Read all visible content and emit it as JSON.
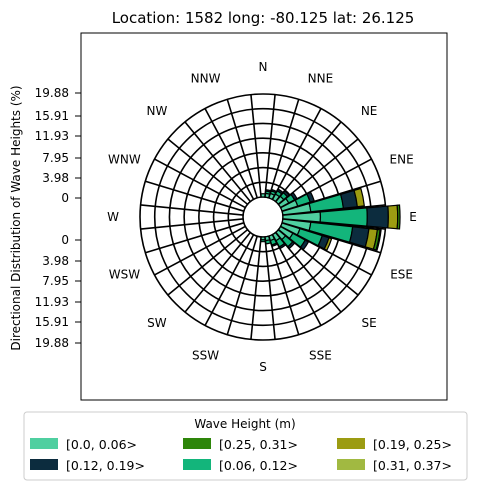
{
  "chart_data": {
    "type": "wind-rose",
    "title": "Location: 1582 long: -80.125 lat: 26.125",
    "ylabel": "Directional Distribution of Wave Heights (%)",
    "radial_ticks_upper": [
      "19.88",
      "15.91",
      "11.93",
      "7.95",
      "3.98",
      "0"
    ],
    "radial_ticks_lower": [
      "0",
      "3.98",
      "7.95",
      "11.93",
      "15.91",
      "19.88"
    ],
    "rmax": 22.0,
    "directions": [
      "N",
      "NNE",
      "NE",
      "ENE",
      "E",
      "ESE",
      "SE",
      "SSE",
      "S",
      "SSW",
      "SW",
      "WSW",
      "W",
      "WNW",
      "NW",
      "NNW"
    ],
    "legend": {
      "title": "Wave Height (m)",
      "entries": [
        {
          "label": "[0.0, 0.06>",
          "color": "#4fcfa0"
        },
        {
          "label": "[0.12, 0.19>",
          "color": "#0c2c3e"
        },
        {
          "label": "[0.25, 0.31>",
          "color": "#2e860a"
        },
        {
          "label": "[0.06, 0.12>",
          "color": "#13b57b"
        },
        {
          "label": "[0.19, 0.25>",
          "color": "#9c9c12"
        },
        {
          "label": "[0.31, 0.37>",
          "color": "#a1b941"
        }
      ]
    },
    "stack_order": [
      {
        "name": "[0.0, 0.06>",
        "color": "#4fcfa0"
      },
      {
        "name": "[0.06, 0.12>",
        "color": "#13b57b"
      },
      {
        "name": "[0.12, 0.19>",
        "color": "#0c2c3e"
      },
      {
        "name": "[0.19, 0.25>",
        "color": "#9c9c12"
      },
      {
        "name": "[0.25, 0.31>",
        "color": "#2e860a"
      },
      {
        "name": "[0.31, 0.37>",
        "color": "#a1b941"
      }
    ],
    "bins": [
      {
        "dir": 0,
        "values": [
          0.7,
          0.0,
          0.0,
          0.0,
          0.0,
          0.0
        ]
      },
      {
        "dir": 11.25,
        "values": [
          0.8,
          0.5,
          0.3,
          0.0,
          0.0,
          0.0
        ]
      },
      {
        "dir": 22.5,
        "values": [
          1.0,
          0.6,
          0.3,
          0.0,
          0.0,
          0.0
        ]
      },
      {
        "dir": 33.75,
        "values": [
          1.3,
          0.8,
          0.4,
          0.0,
          0.0,
          0.0
        ]
      },
      {
        "dir": 45,
        "values": [
          1.5,
          1.0,
          0.5,
          0.0,
          0.0,
          0.0
        ]
      },
      {
        "dir": 56.25,
        "values": [
          2.0,
          1.4,
          0.6,
          0.0,
          0.0,
          0.0
        ]
      },
      {
        "dir": 67.5,
        "values": [
          3.5,
          2.8,
          0.9,
          0.0,
          0.0,
          0.0
        ]
      },
      {
        "dir": 78.75,
        "values": [
          6.0,
          7.0,
          3.0,
          1.5,
          0.0,
          0.0
        ]
      },
      {
        "dir": 90,
        "values": [
          8.0,
          10.0,
          4.5,
          2.0,
          0.5,
          0.0
        ]
      },
      {
        "dir": 101.25,
        "values": [
          6.0,
          9.0,
          3.5,
          1.8,
          0.6,
          0.2
        ]
      },
      {
        "dir": 112.5,
        "values": [
          4.0,
          5.0,
          1.5,
          0.6,
          0.0,
          0.0
        ]
      },
      {
        "dir": 123.75,
        "values": [
          3.0,
          3.0,
          0.8,
          0.0,
          0.0,
          0.0
        ]
      },
      {
        "dir": 135,
        "values": [
          2.0,
          2.0,
          0.5,
          0.0,
          0.0,
          0.0
        ]
      },
      {
        "dir": 146.25,
        "values": [
          1.5,
          1.5,
          0.4,
          0.0,
          0.0,
          0.0
        ]
      },
      {
        "dir": 157.5,
        "values": [
          1.0,
          1.0,
          0.3,
          0.0,
          0.0,
          0.0
        ]
      },
      {
        "dir": 168.75,
        "values": [
          0.8,
          0.7,
          0.0,
          0.0,
          0.0,
          0.0
        ]
      },
      {
        "dir": 180,
        "values": [
          0.6,
          0.4,
          0.0,
          0.0,
          0.0,
          0.0
        ]
      }
    ]
  }
}
